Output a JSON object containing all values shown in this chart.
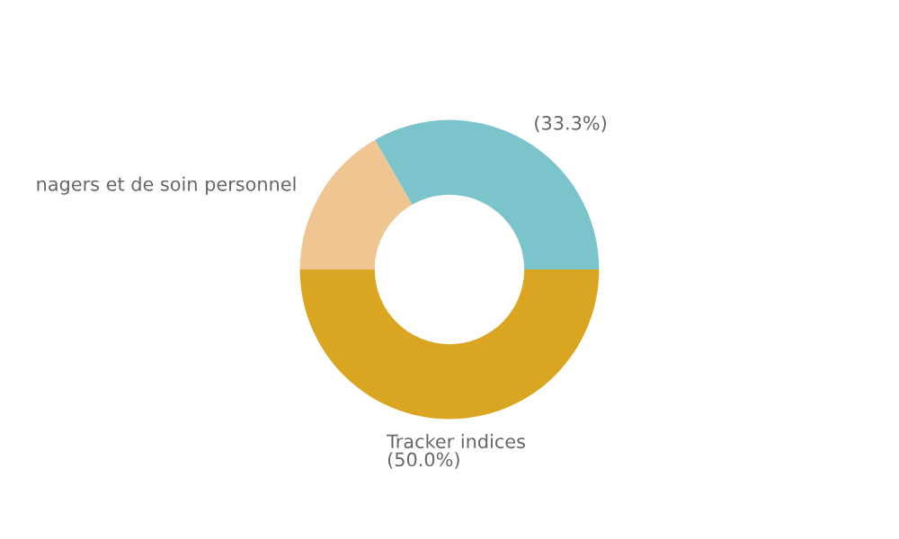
{
  "chart_data": {
    "type": "donut",
    "categories": [
      "Tracker indices",
      "nagers et de soin personnel",
      null
    ],
    "values": [
      50.0,
      16.7,
      33.3
    ],
    "value_labels": [
      "(50.0%)",
      null,
      "(33.3%)"
    ],
    "colors": [
      "#daa520",
      "#efc592",
      "#7cc4cc"
    ]
  }
}
